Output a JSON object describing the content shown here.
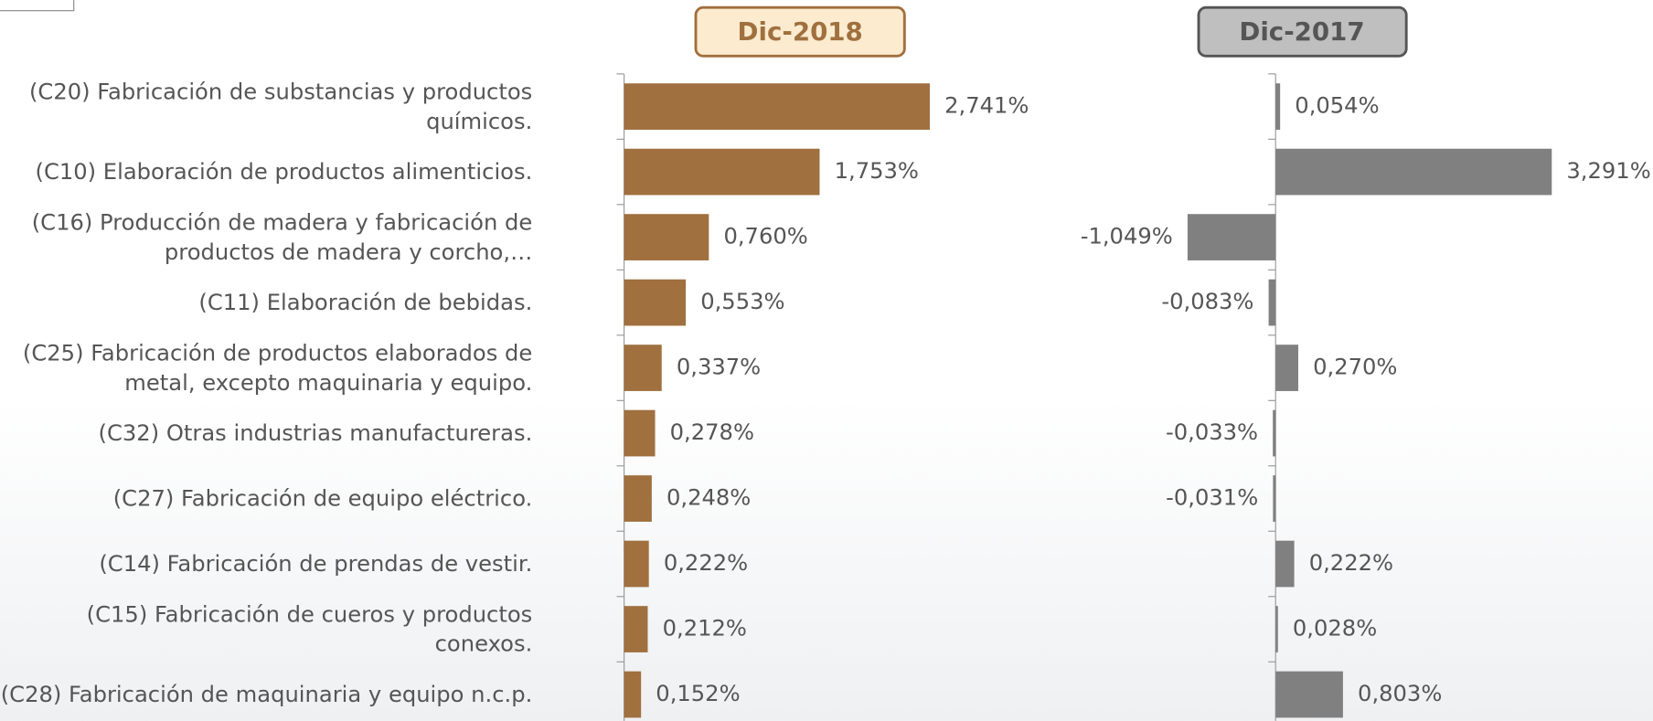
{
  "chart_data": [
    {
      "type": "bar",
      "orientation": "horizontal",
      "title": "Dic-2018",
      "color": "#a0703f",
      "categories": [
        "(C20) Fabricación de substancias y productos químicos.",
        "(C10) Elaboración de productos alimenticios.",
        "(C16) Producción de madera y fabricación de productos de madera y corcho,…",
        "(C11) Elaboración de bebidas.",
        "(C25) Fabricación de productos elaborados de metal, excepto maquinaria y equipo.",
        "(C32) Otras industrias manufactureras.",
        "(C27) Fabricación de equipo eléctrico.",
        "(C14) Fabricación de prendas de vestir.",
        "(C15) Fabricación de cueros y productos conexos.",
        "(C28) Fabricación de maquinaria y equipo n.c.p."
      ],
      "values": [
        2.741,
        1.753,
        0.76,
        0.553,
        0.337,
        0.278,
        0.248,
        0.222,
        0.212,
        0.152
      ],
      "value_labels": [
        "2,741%",
        "1,753%",
        "0,760%",
        "0,553%",
        "0,337%",
        "0,278%",
        "0,248%",
        "0,222%",
        "0,212%",
        "0,152%"
      ],
      "xlim": [
        0,
        3.5
      ]
    },
    {
      "type": "bar",
      "orientation": "horizontal",
      "title": "Dic-2017",
      "color": "#808080",
      "values": [
        0.054,
        3.291,
        -1.049,
        -0.083,
        0.27,
        -0.033,
        -0.031,
        0.222,
        0.028,
        0.803
      ],
      "value_labels": [
        "0,054%",
        "3,291%",
        "-1,049%",
        "-0,083%",
        "0,270%",
        "-0,033%",
        "-0,031%",
        "0,222%",
        "0,028%",
        "0,803%"
      ],
      "xlim": [
        -1.5,
        4
      ]
    }
  ]
}
